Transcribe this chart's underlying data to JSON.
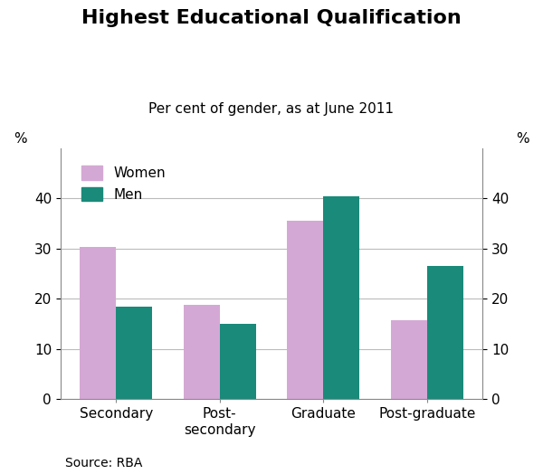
{
  "title": "Highest Educational Qualification",
  "subtitle": "Per cent of gender, as at June 2011",
  "source": "Source: RBA",
  "categories": [
    "Secondary",
    "Post-\nsecondary",
    "Graduate",
    "Post-graduate"
  ],
  "women_values": [
    30.3,
    18.8,
    35.5,
    15.8
  ],
  "men_values": [
    18.5,
    15.0,
    40.5,
    26.5
  ],
  "women_color": "#d4a8d4",
  "men_color": "#1a8a7a",
  "ylim": [
    0,
    50
  ],
  "yticks": [
    0,
    10,
    20,
    30,
    40
  ],
  "bar_width": 0.35,
  "background_color": "#ffffff",
  "grid_color": "#bbbbbb",
  "title_fontsize": 16,
  "subtitle_fontsize": 11,
  "tick_fontsize": 11,
  "legend_fontsize": 11,
  "source_fontsize": 10
}
